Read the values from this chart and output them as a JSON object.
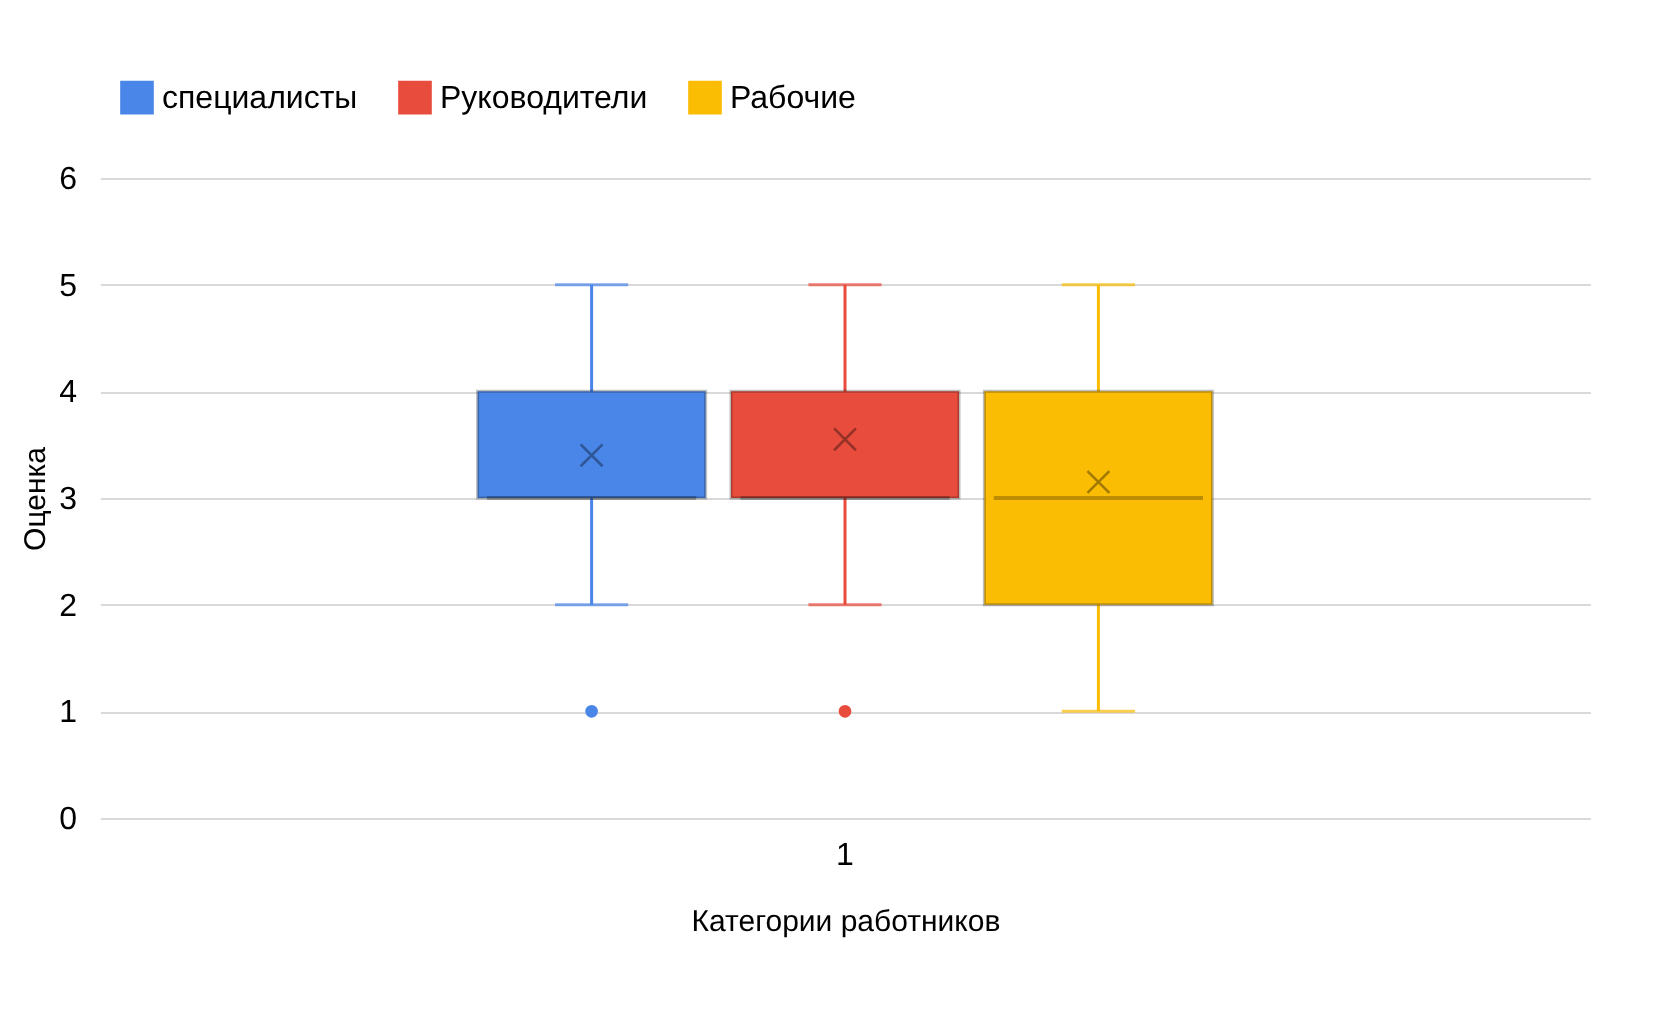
{
  "chart_data": {
    "type": "box",
    "xlabel": "Категории работников",
    "ylabel": "Оценка",
    "categories": [
      "1"
    ],
    "ylim": [
      0,
      6
    ],
    "yticks": [
      0,
      1,
      2,
      3,
      4,
      5,
      6
    ],
    "grid": "y",
    "legend": "top",
    "series": [
      {
        "name": "специалисты",
        "color": "#4a86e8",
        "boxes": [
          {
            "low": 2,
            "q1": 3,
            "median": 3,
            "q3": 4,
            "high": 5,
            "mean": 3.4,
            "outliers": [
              1
            ]
          }
        ]
      },
      {
        "name": "Руководители",
        "color": "#e84c3d",
        "boxes": [
          {
            "low": 2,
            "q1": 3,
            "median": 3,
            "q3": 4,
            "high": 5,
            "mean": 3.55,
            "outliers": [
              1
            ]
          }
        ]
      },
      {
        "name": "Рабочие",
        "color": "#fbbc04",
        "boxes": [
          {
            "low": 1,
            "q1": 2,
            "median": 3,
            "q3": 4,
            "high": 5,
            "mean": 3.15
          }
        ]
      }
    ]
  }
}
